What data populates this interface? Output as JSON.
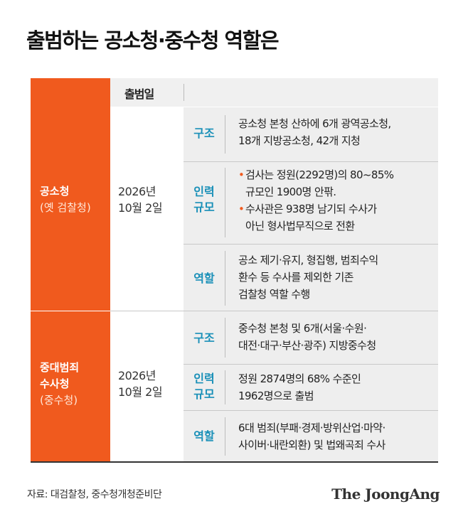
{
  "title": "출범하는 공소청·중수청 역할은",
  "header": {
    "col_label": "출범일"
  },
  "sections": [
    {
      "name": "공소청",
      "sub": "(옛 검찰청)",
      "date_line1": "2026년",
      "date_line2": "10월 2일",
      "rows": [
        {
          "cat": "구조",
          "lines": [
            "공소청 본청 산하에 6개 광역공소청,",
            "18개 지방공소청, 42개 지청"
          ]
        },
        {
          "cat_line1": "인력",
          "cat_line2": "규모",
          "bullets": [
            {
              "line1": "검사는 정원(2292명)의 80~85%",
              "line2": "규모인 1900명 안팎."
            },
            {
              "line1": "수사관은 938명 남기되 수사가",
              "line2": "아닌 형사법무직으로 전환"
            }
          ]
        },
        {
          "cat": "역할",
          "lines": [
            "공소 제기·유지, 형집행, 범죄수익",
            "환수 등 수사를 제외한 기존",
            "검찰청 역할 수행"
          ]
        }
      ]
    },
    {
      "name_line1": "중대범죄",
      "name_line2": "수사청",
      "sub": "(중수청)",
      "date_line1": "2026년",
      "date_line2": "10월 2일",
      "rows": [
        {
          "cat": "구조",
          "lines": [
            "중수청 본청 및 6개(서울·수원·",
            "대전·대구·부산·광주) 지방중수청"
          ]
        },
        {
          "cat_line1": "인력",
          "cat_line2": "규모",
          "lines": [
            "정원 2874명의 68% 수준인",
            "1962명으로 출범"
          ]
        },
        {
          "cat": "역할",
          "lines": [
            "6대 범죄(부패·경제·방위산업·마약·",
            "사이버·내란외환) 및 법왜곡죄 수사"
          ]
        }
      ]
    }
  ],
  "source": "자료: 대검찰청, 중수청개청준비단",
  "logo": "The JoongAng",
  "colors": {
    "accent": "#f05a1e",
    "category": "#1a90b8",
    "panel": "#eeeeee"
  }
}
